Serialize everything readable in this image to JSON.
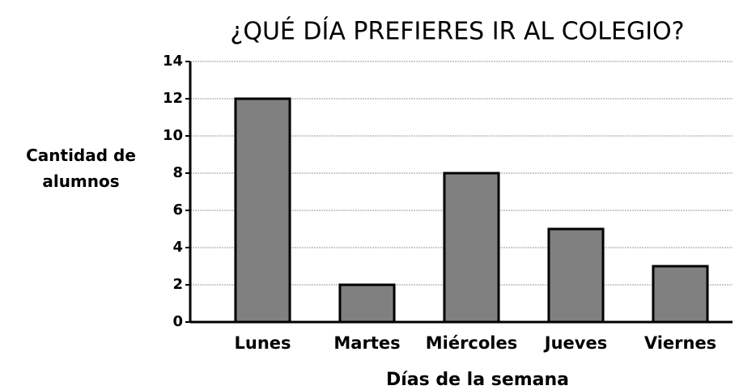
{
  "chart_data": {
    "type": "bar",
    "title": "¿QUÉ DÍA PREFIERES IR AL COLEGIO?",
    "xlabel": "Días de la semana",
    "ylabel": "Cantidad de alumnos",
    "categories": [
      "Lunes",
      "Martes",
      "Miércoles",
      "Jueves",
      "Viernes"
    ],
    "values": [
      12,
      2,
      8,
      5,
      3
    ],
    "color": "#808080",
    "ylim": [
      0,
      14
    ],
    "yticks": [
      0,
      2,
      4,
      6,
      8,
      10,
      12,
      14
    ],
    "grid": true
  }
}
